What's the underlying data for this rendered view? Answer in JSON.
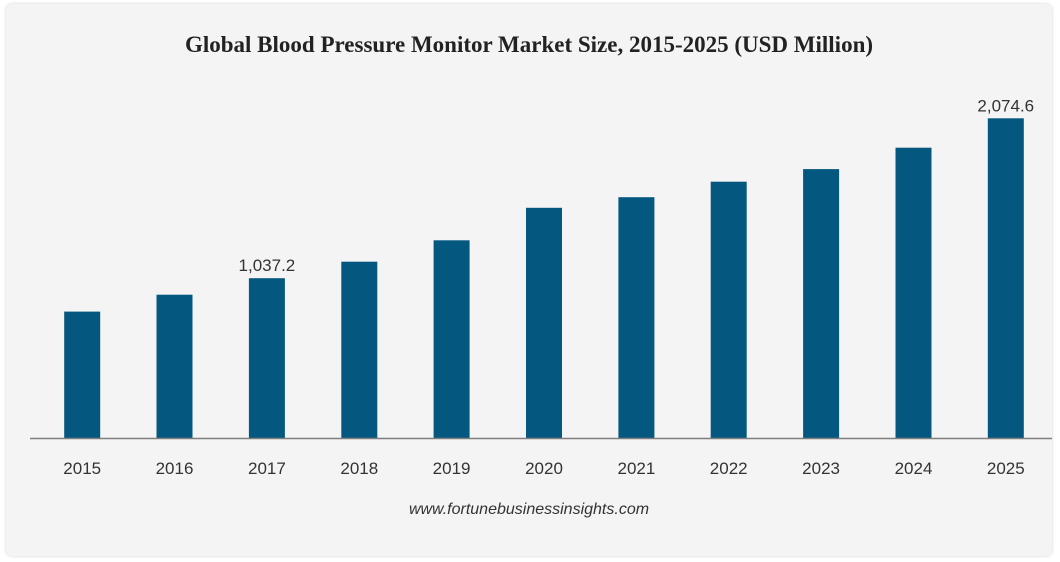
{
  "chart_data": {
    "type": "bar",
    "title": "Global Blood Pressure Monitor Market Size, 2015-2025 (USD Million)",
    "xlabel": "",
    "ylabel": "",
    "categories": [
      "2015",
      "2016",
      "2017",
      "2018",
      "2019",
      "2020",
      "2021",
      "2022",
      "2023",
      "2024",
      "2025"
    ],
    "values": [
      820,
      930,
      1037.2,
      1144,
      1283,
      1494,
      1563,
      1663,
      1745,
      1884,
      2074.6
    ],
    "data_labels": [
      {
        "category": "2017",
        "text": "1,037.2"
      },
      {
        "category": "2025",
        "text": "2,074.6"
      }
    ],
    "ylim": [
      0,
      2200
    ],
    "grid": false,
    "bar_color": "#04587f",
    "axis_color": "#7f7f7f"
  },
  "footer": {
    "source": "www.fortunebusinessinsights.com"
  }
}
